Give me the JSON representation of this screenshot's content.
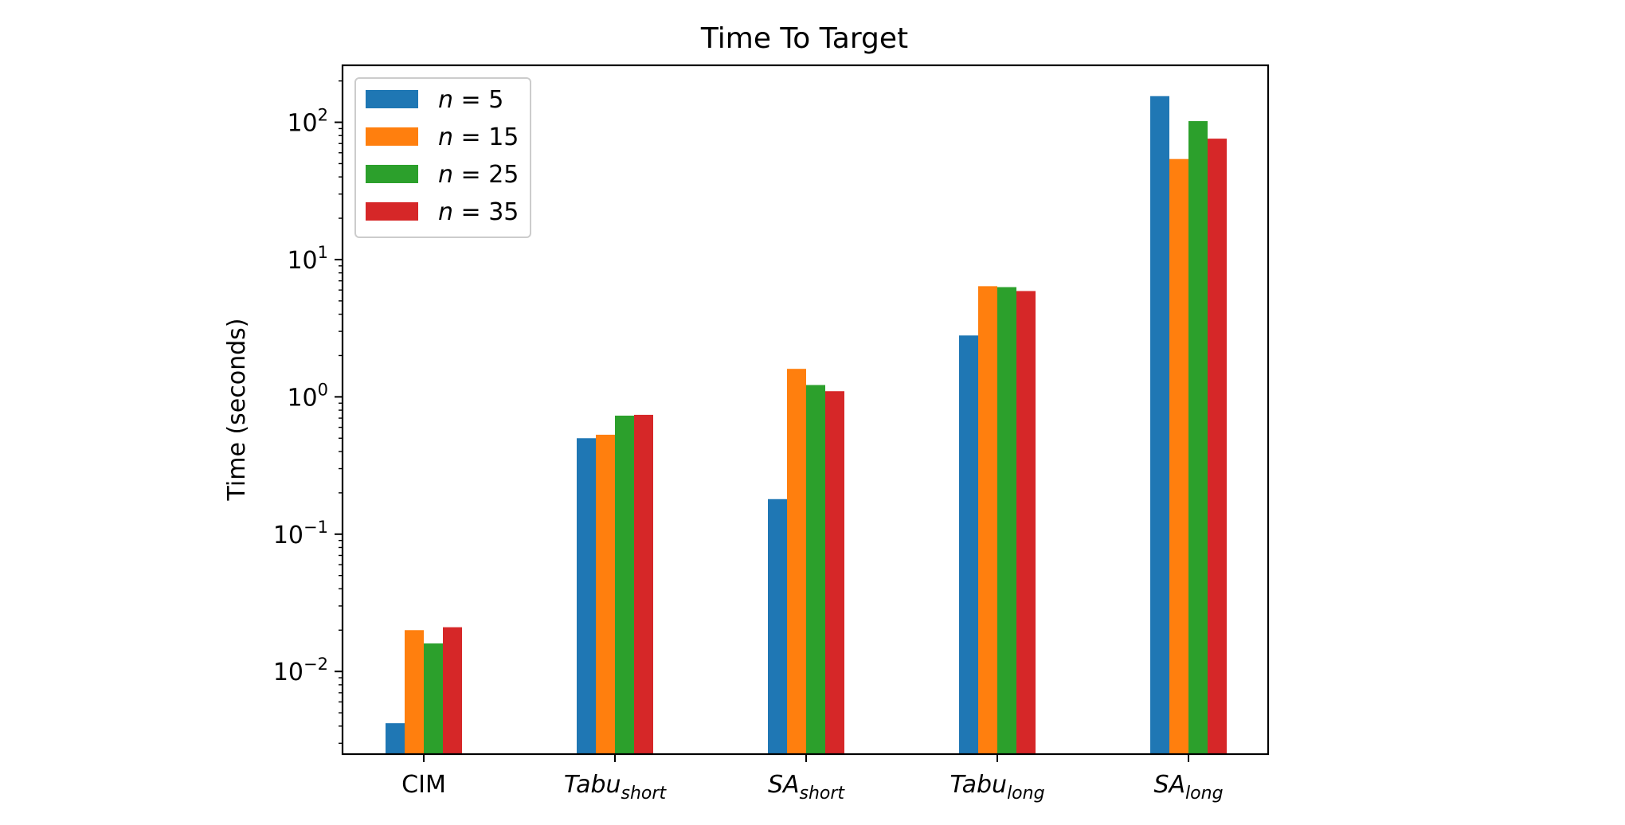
{
  "chart_data": {
    "type": "bar",
    "title": "Time To Target",
    "ylabel": "Time (seconds)",
    "xlabel": "",
    "yscale": "log",
    "ylim": [
      0.0025,
      260
    ],
    "yticks": [
      {
        "value": 0.01,
        "base": "10",
        "exp": "−2"
      },
      {
        "value": 0.1,
        "base": "10",
        "exp": "−1"
      },
      {
        "value": 1,
        "base": "10",
        "exp": "0"
      },
      {
        "value": 10,
        "base": "10",
        "exp": "1"
      },
      {
        "value": 100,
        "base": "10",
        "exp": "2"
      }
    ],
    "categories": [
      {
        "main": "CIM",
        "sub": "",
        "italic": false
      },
      {
        "main": "Tabu",
        "sub": "short",
        "italic": true
      },
      {
        "main": "SA",
        "sub": "short",
        "italic": true
      },
      {
        "main": "Tabu",
        "sub": "long",
        "italic": true
      },
      {
        "main": "SA",
        "sub": "long",
        "italic": true
      }
    ],
    "series": [
      {
        "name": "n = 5",
        "var": "n",
        "num": "5",
        "color": "#1f77b4",
        "values": [
          0.0042,
          0.5,
          0.18,
          2.8,
          155
        ]
      },
      {
        "name": "n = 15",
        "var": "n",
        "num": "15",
        "color": "#ff7f0e",
        "values": [
          0.02,
          0.53,
          1.6,
          6.4,
          54
        ]
      },
      {
        "name": "n = 25",
        "var": "n",
        "num": "25",
        "color": "#2ca02c",
        "values": [
          0.016,
          0.73,
          1.22,
          6.3,
          102
        ]
      },
      {
        "name": "n = 35",
        "var": "n",
        "num": "35",
        "color": "#d62728",
        "values": [
          0.021,
          0.74,
          1.1,
          5.9,
          76
        ]
      }
    ],
    "grid": false,
    "legend_position": "top-left"
  }
}
